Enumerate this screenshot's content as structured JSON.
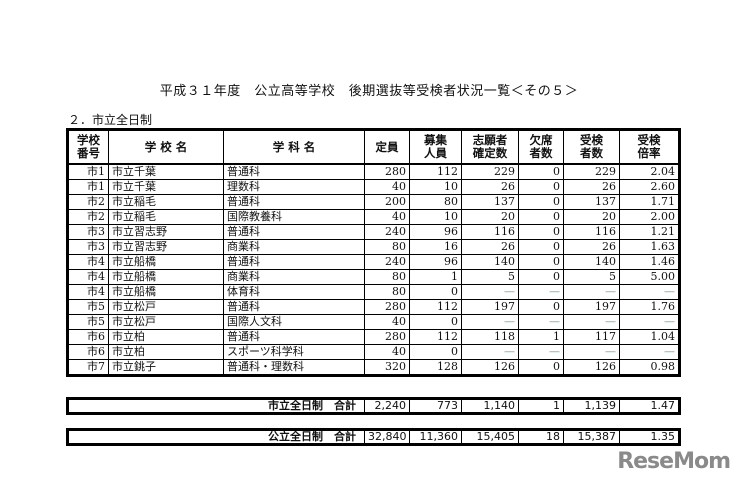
{
  "title": "平成３１年度　公立高等学校　後期選抜等受検者状況一覧＜その５＞",
  "section": "２．市立全日制",
  "headers": {
    "no": [
      "学校",
      "番号"
    ],
    "school": "学 校 名",
    "course": "学 科 名",
    "capacity": "定員",
    "recruit": [
      "募集",
      "人員"
    ],
    "applicants": [
      "志願者",
      "確定数"
    ],
    "absent": [
      "欠席",
      "者数"
    ],
    "examinees": [
      "受検",
      "者数"
    ],
    "ratio": [
      "受検",
      "倍率"
    ]
  },
  "rows": [
    [
      "市1",
      "市立千葉",
      "普通科",
      "280",
      "112",
      "229",
      "0",
      "229",
      "2.04"
    ],
    [
      "市1",
      "市立千葉",
      "理数科",
      "40",
      "10",
      "26",
      "0",
      "26",
      "2.60"
    ],
    [
      "市2",
      "市立稲毛",
      "普通科",
      "200",
      "80",
      "137",
      "0",
      "137",
      "1.71"
    ],
    [
      "市2",
      "市立稲毛",
      "国際教養科",
      "40",
      "10",
      "20",
      "0",
      "20",
      "2.00"
    ],
    [
      "市3",
      "市立習志野",
      "普通科",
      "240",
      "96",
      "116",
      "0",
      "116",
      "1.21"
    ],
    [
      "市3",
      "市立習志野",
      "商業科",
      "80",
      "16",
      "26",
      "0",
      "26",
      "1.63"
    ],
    [
      "市4",
      "市立船橋",
      "普通科",
      "240",
      "96",
      "140",
      "0",
      "140",
      "1.46"
    ],
    [
      "市4",
      "市立船橋",
      "商業科",
      "80",
      "1",
      "5",
      "0",
      "5",
      "5.00"
    ],
    [
      "市4",
      "市立船橋",
      "体育科",
      "80",
      "0",
      "—",
      "—",
      "—",
      "—"
    ],
    [
      "市5",
      "市立松戸",
      "普通科",
      "280",
      "112",
      "197",
      "0",
      "197",
      "1.76"
    ],
    [
      "市5",
      "市立松戸",
      "国際人文科",
      "40",
      "0",
      "—",
      "—",
      "—",
      "—"
    ],
    [
      "市6",
      "市立柏",
      "普通科",
      "280",
      "112",
      "118",
      "1",
      "117",
      "1.04"
    ],
    [
      "市6",
      "市立柏",
      "スポーツ科学科",
      "40",
      "0",
      "—",
      "—",
      "—",
      "—"
    ],
    [
      "市7",
      "市立銚子",
      "普通科・理数科",
      "320",
      "128",
      "126",
      "0",
      "126",
      "0.98"
    ]
  ],
  "totals": [
    {
      "label": "市立全日制　合計",
      "values": [
        "2,240",
        "773",
        "1,140",
        "1",
        "1,139",
        "1.47"
      ]
    },
    {
      "label": "公立全日制　合計",
      "values": [
        "32,840",
        "11,360",
        "15,405",
        "18",
        "15,387",
        "1.35"
      ]
    }
  ],
  "watermark": "ReseMom"
}
